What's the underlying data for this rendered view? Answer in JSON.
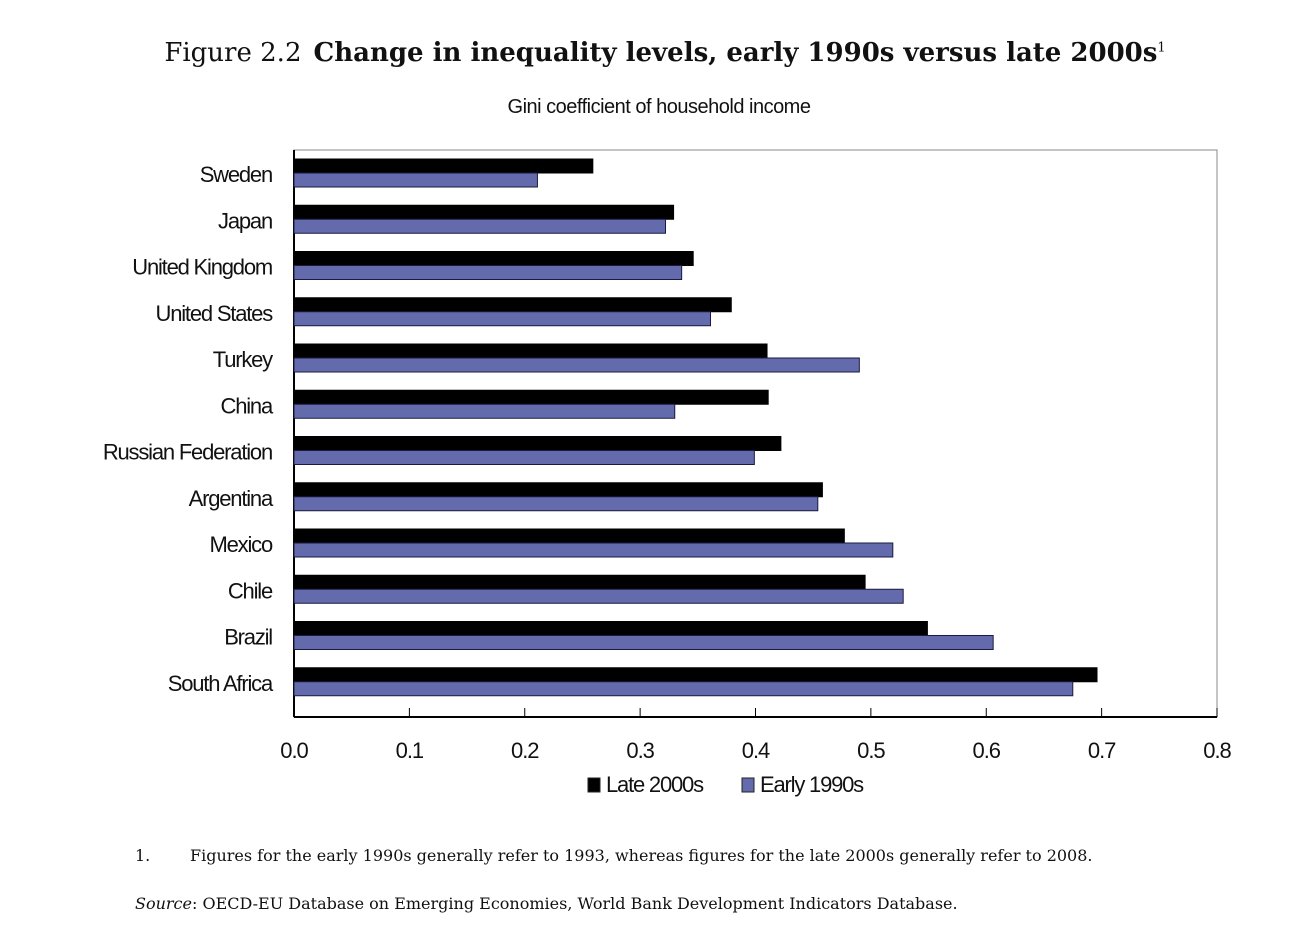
{
  "chart_data": {
    "type": "bar",
    "orientation": "horizontal",
    "figure_label": "Figure 2.2",
    "title": "Change in inequality levels, early 1990s versus late 2000s",
    "title_footnote_marker": "1",
    "subtitle": "Gini coefficient of household income",
    "categories": [
      "Sweden",
      "Japan",
      "United Kingdom",
      "United States",
      "Turkey",
      "China",
      "Russian Federation",
      "Argentina",
      "Mexico",
      "Chile",
      "Brazil",
      "South Africa"
    ],
    "series": [
      {
        "name": "Late 2000s",
        "color": "#000000",
        "values": [
          0.259,
          0.329,
          0.346,
          0.379,
          0.41,
          0.411,
          0.422,
          0.458,
          0.477,
          0.495,
          0.549,
          0.696
        ]
      },
      {
        "name": "Early 1990s",
        "color": "#636bad",
        "values": [
          0.211,
          0.322,
          0.336,
          0.361,
          0.49,
          0.33,
          0.399,
          0.454,
          0.519,
          0.528,
          0.606,
          0.675
        ]
      }
    ],
    "xlim": [
      0,
      0.8
    ],
    "xticks": [
      "0.0",
      "0.1",
      "0.2",
      "0.3",
      "0.4",
      "0.5",
      "0.6",
      "0.7",
      "0.8"
    ],
    "xlabel": "",
    "ylabel": "",
    "grid": false,
    "legend_position": "bottom-center"
  },
  "notes": {
    "footnote_number": "1.",
    "footnote_text": "Figures for the early 1990s generally refer to 1993, whereas figures for the late 2000s generally refer to 2008.",
    "source_label": "Source",
    "source_text": ": OECD-EU Database on Emerging Economies, World Bank Development Indicators Database."
  }
}
